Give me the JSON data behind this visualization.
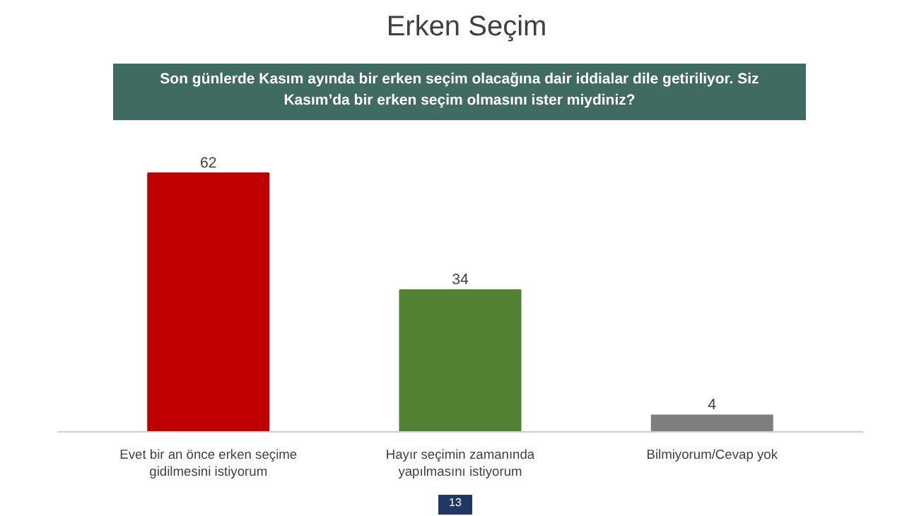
{
  "chart_data": {
    "type": "bar",
    "title": "Erken Seçim",
    "subtitle": "Son günlerde Kasım ayında bir erken seçim olacağına dair iddialar dile getiriliyor. Siz Kasım’da bir erken seçim olmasını ister miydiniz?",
    "categories": [
      "Evet bir an önce erken seçime gidilmesini istiyorum",
      "Hayır seçimin zamanında yapılmasını istiyorum",
      "Bilmiyorum/Cevap yok"
    ],
    "values": [
      62,
      34,
      4
    ],
    "colors": [
      "#c00000",
      "#548235",
      "#7f7f7f"
    ],
    "data_labels": true,
    "grid": false,
    "annotations": [
      "13"
    ]
  }
}
